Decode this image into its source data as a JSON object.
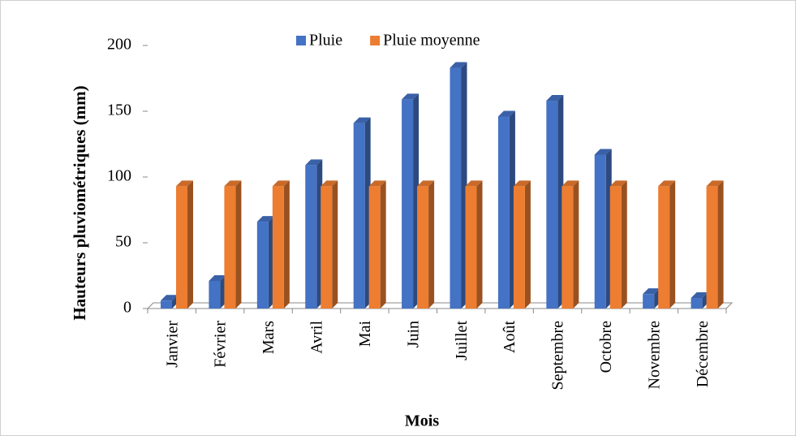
{
  "chart_data": {
    "type": "bar3d",
    "x_label": "Mois",
    "y_label": "Hauteurs pluviométriques (mm)",
    "categories": [
      "Janvier",
      "Février",
      "Mars",
      "Avril",
      "Mai",
      "Juin",
      "Juillet",
      "Août",
      "Septembre",
      "Octobre",
      "Novembre",
      "Décembre"
    ],
    "series": [
      {
        "name": "Pluie",
        "color": "#4472c4",
        "values": [
          6,
          21,
          66,
          109,
          141,
          159,
          183,
          146,
          158,
          117,
          11,
          8
        ]
      },
      {
        "name": "Pluie moyenne",
        "color": "#ed7d31",
        "values": [
          93,
          93,
          93,
          93,
          93,
          93,
          93,
          93,
          93,
          93,
          93,
          93
        ]
      }
    ],
    "ylim": [
      0,
      200
    ],
    "yticks": [
      0,
      50,
      100,
      150,
      200
    ],
    "legend": "top"
  }
}
